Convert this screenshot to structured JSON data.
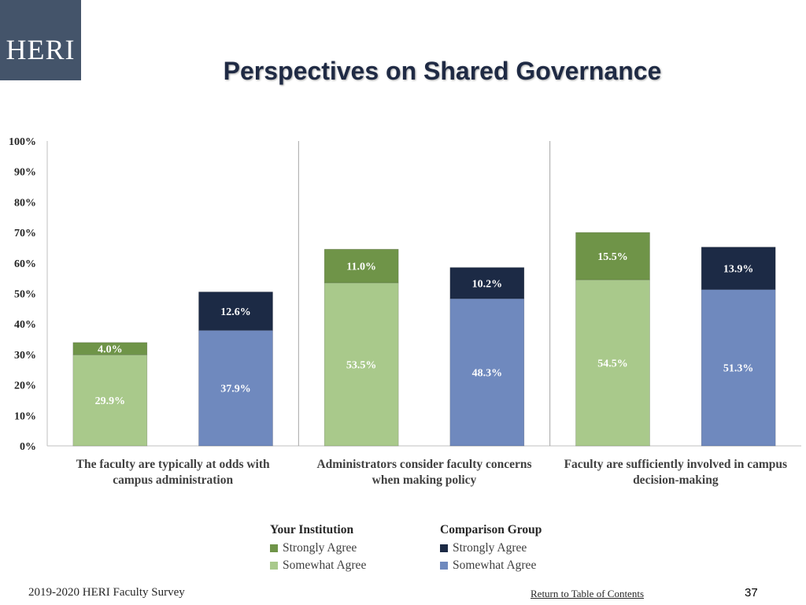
{
  "logo": {
    "text": "HERI"
  },
  "title": "Perspectives on Shared Governance",
  "chart_data": {
    "type": "bar",
    "stacked": true,
    "ylim": [
      0,
      100
    ],
    "y_ticks": [
      "0%",
      "10%",
      "20%",
      "30%",
      "40%",
      "50%",
      "60%",
      "70%",
      "80%",
      "90%",
      "100%"
    ],
    "grid": false,
    "categories": [
      {
        "line1": "The faculty are typically at odds with",
        "line2": "campus administration"
      },
      {
        "line1": "Administrators consider faculty concerns",
        "line2": "when making policy"
      },
      {
        "line1": "Faculty are sufficiently involved in campus",
        "line2": "decision-making"
      }
    ],
    "groups": [
      "Your Institution",
      "Comparison Group"
    ],
    "series": [
      {
        "name": "Somewhat Agree",
        "group": "Your Institution",
        "color": "#a9c98b",
        "values": [
          29.9,
          53.5,
          54.5
        ],
        "labels": [
          "29.9%",
          "53.5%",
          "54.5%"
        ],
        "label_color": "#ffffff"
      },
      {
        "name": "Strongly Agree",
        "group": "Your Institution",
        "color": "#6f9448",
        "values": [
          4.0,
          11.0,
          15.5
        ],
        "labels": [
          "4.0%",
          "11.0%",
          "15.5%"
        ],
        "label_color": "#ffffff"
      },
      {
        "name": "Somewhat Agree",
        "group": "Comparison Group",
        "color": "#6f89be",
        "values": [
          37.9,
          48.3,
          51.3
        ],
        "labels": [
          "37.9%",
          "48.3%",
          "51.3%"
        ],
        "label_color": "#ffffff"
      },
      {
        "name": "Strongly Agree",
        "group": "Comparison Group",
        "color": "#1c2a45",
        "values": [
          12.6,
          10.2,
          13.9
        ],
        "labels": [
          "12.6%",
          "10.2%",
          "13.9%"
        ],
        "label_color": "#ffffff"
      }
    ],
    "legend": {
      "position": "bottom",
      "columns": [
        {
          "heading": "Your Institution",
          "items": [
            {
              "label": "Strongly Agree",
              "color": "#6f9448"
            },
            {
              "label": "Somewhat Agree",
              "color": "#a9c98b"
            }
          ]
        },
        {
          "heading": "Comparison Group",
          "items": [
            {
              "label": "Strongly Agree",
              "color": "#1c2a45"
            },
            {
              "label": "Somewhat Agree",
              "color": "#6f89be"
            }
          ]
        }
      ]
    }
  },
  "footer": {
    "left": "2019-2020 HERI Faculty Survey",
    "link": "Return to Table of Contents",
    "page": "37"
  }
}
